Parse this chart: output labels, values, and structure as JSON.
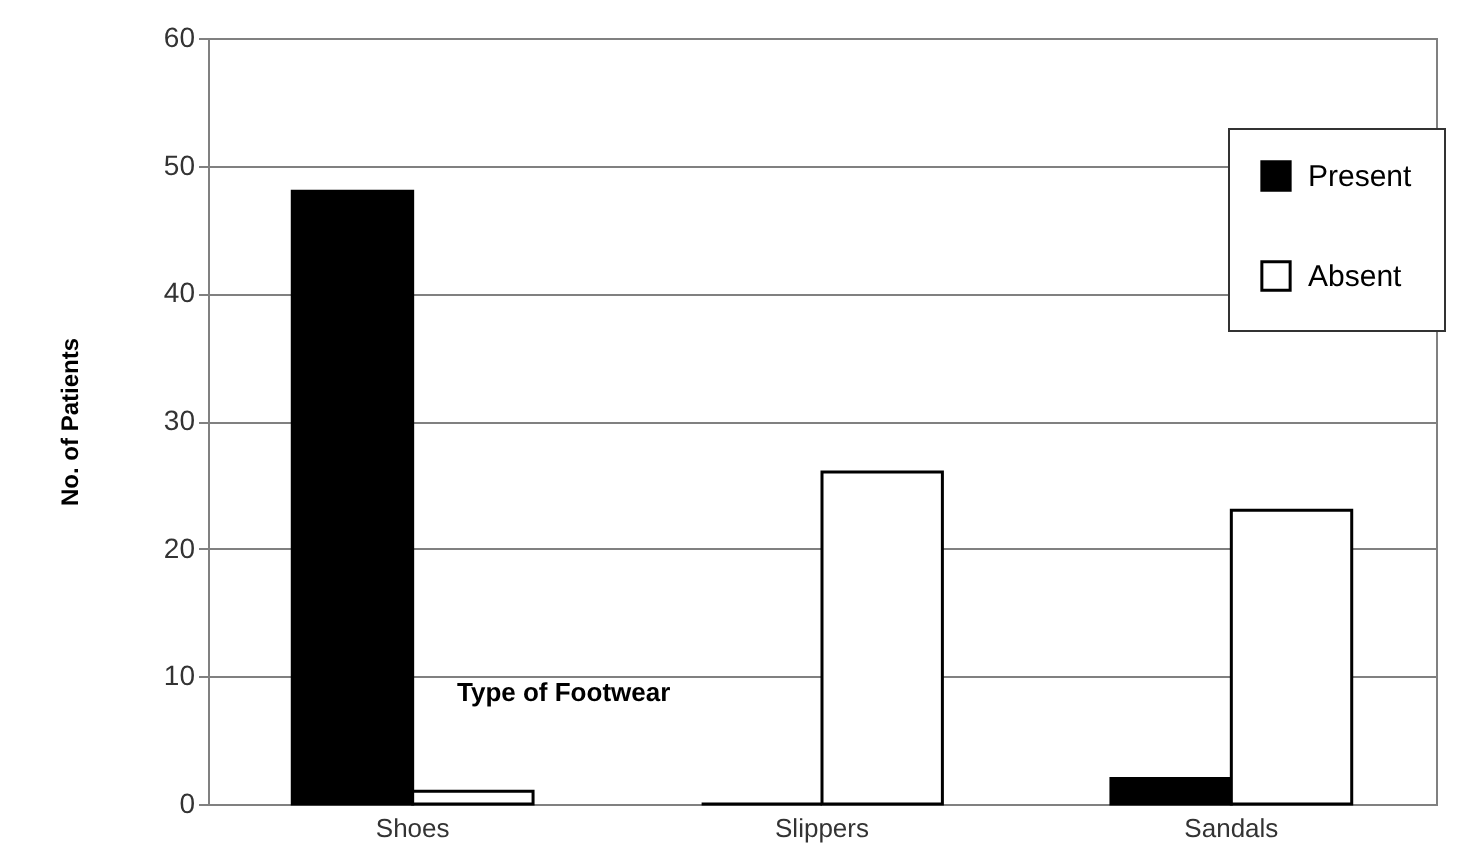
{
  "chart_data": {
    "type": "bar",
    "xlabel": "Type of Footwear",
    "ylabel": "No. of Patients",
    "categories": [
      "Shoes",
      "Slippers",
      "Sandals"
    ],
    "series": [
      {
        "name": "Present",
        "color": "#000000",
        "values": [
          48,
          0,
          2
        ]
      },
      {
        "name": "Absent",
        "color": "#ffffff",
        "values": [
          1,
          26,
          23
        ]
      }
    ],
    "ylim": [
      0,
      60
    ],
    "yticks": [
      0,
      10,
      20,
      30,
      40,
      50,
      60
    ],
    "grid": "y",
    "legend": "top right"
  }
}
